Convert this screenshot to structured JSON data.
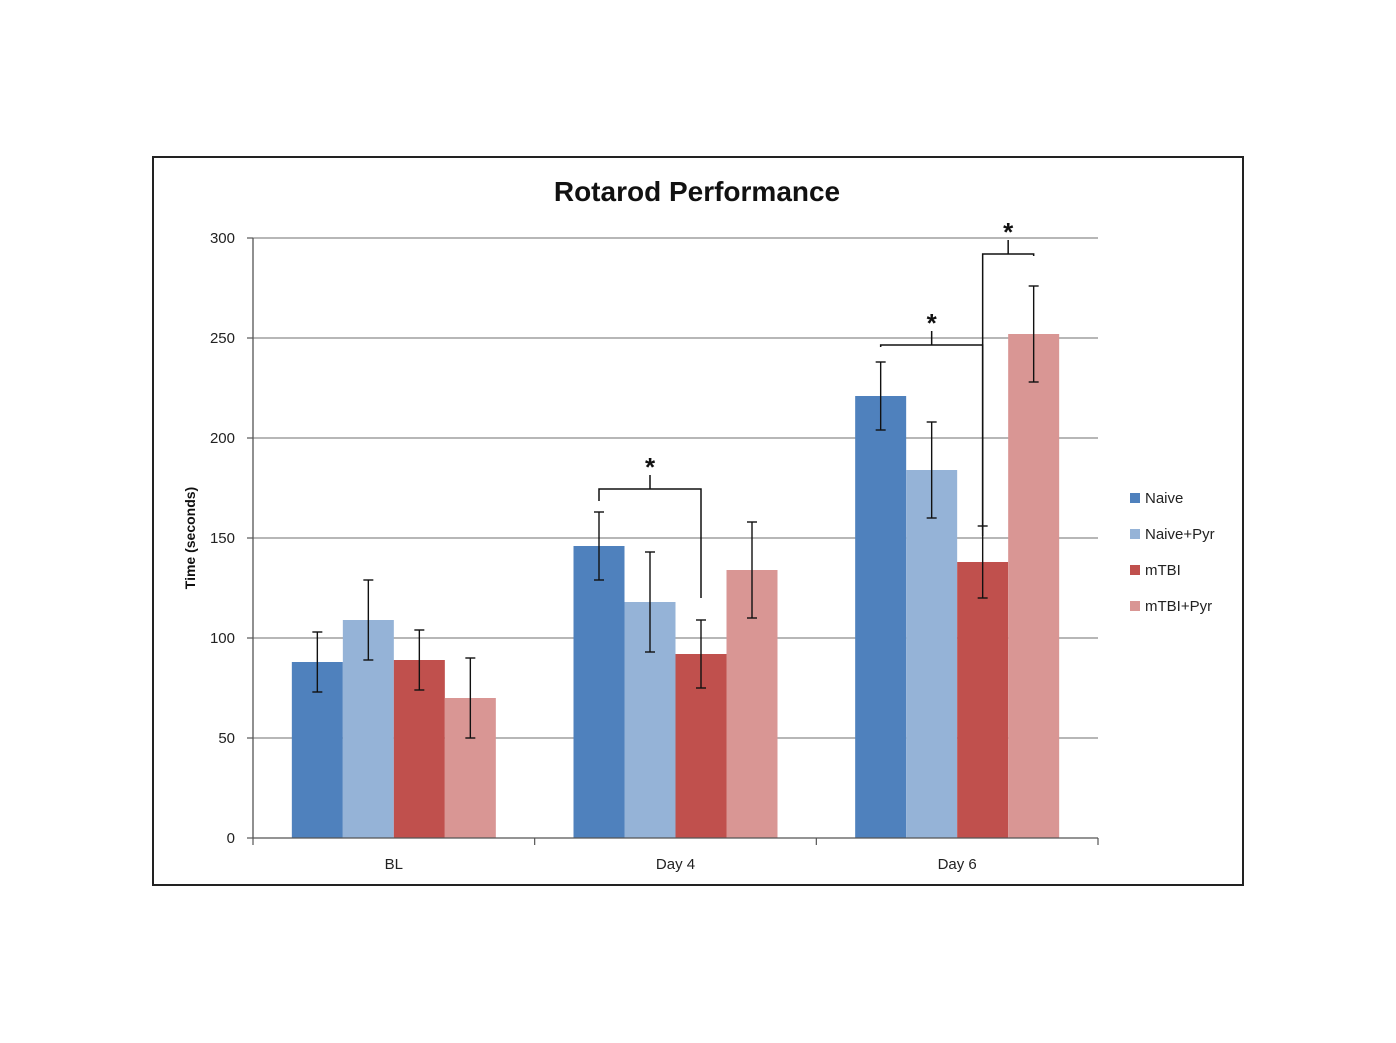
{
  "chart_data": {
    "type": "bar",
    "title": "Rotarod Performance",
    "ylabel": "Time (seconds)",
    "xlabel": "",
    "ylim": [
      0,
      300
    ],
    "yticks": [
      0,
      50,
      100,
      150,
      200,
      250,
      300
    ],
    "grid": true,
    "legend_position": "right",
    "categories": [
      "BL",
      "Day 4",
      "Day 6"
    ],
    "series": [
      {
        "name": "Naive",
        "color": "#4F81BD",
        "values": [
          88,
          146,
          221
        ],
        "errors": [
          15,
          17,
          17
        ]
      },
      {
        "name": "Naive+Pyr",
        "color": "#95B3D7",
        "values": [
          109,
          118,
          184
        ],
        "errors": [
          20,
          25,
          24
        ]
      },
      {
        "name": "mTBI",
        "color": "#C0504D",
        "values": [
          89,
          92,
          138
        ],
        "errors": [
          15,
          17,
          18
        ]
      },
      {
        "name": "mTBI+Pyr",
        "color": "#D99694",
        "values": [
          70,
          134,
          252
        ],
        "errors": [
          20,
          24,
          24
        ]
      }
    ],
    "significance": [
      {
        "label": "*",
        "category": "Day 4",
        "from_series": "Naive",
        "to_series": "mTBI"
      },
      {
        "label": "*",
        "category": "Day 6",
        "from_series": "Naive",
        "to_series": "mTBI"
      },
      {
        "label": "*",
        "category": "Day 6",
        "from_series": "mTBI",
        "to_series": "mTBI+Pyr"
      }
    ]
  }
}
